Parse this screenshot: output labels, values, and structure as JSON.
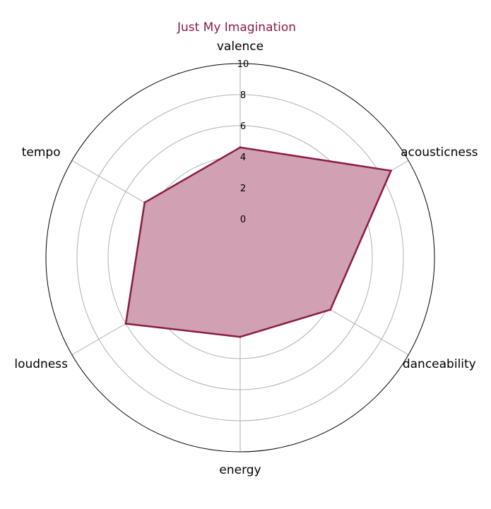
{
  "chart_data": {
    "type": "radar",
    "title": "Just My Imagination",
    "categories": [
      "valence",
      "acousticness",
      "danceability",
      "energy",
      "loudness",
      "tempo"
    ],
    "series": [
      {
        "values": [
          4.6,
          8.7,
          4.2,
          2.6,
          6.0,
          4.6
        ]
      }
    ],
    "rlim": [
      0,
      10
    ],
    "rticks": [
      0,
      2,
      4,
      6,
      8,
      10
    ],
    "rtick_labels": [
      "0",
      "2",
      "4",
      "6",
      "8",
      "10"
    ],
    "grid": true,
    "colors": {
      "line": "#8b1a46",
      "fill": "#cfa1b2"
    }
  }
}
